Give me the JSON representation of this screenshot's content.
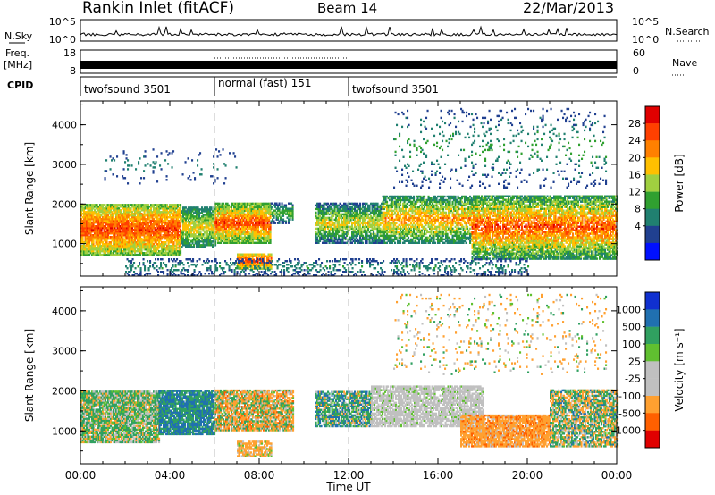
{
  "header": {
    "station": "Rankin Inlet (fitACF)",
    "beam": "Beam 14",
    "date": "22/Mar/2013"
  },
  "noise_panel": {
    "left_label": "N.Sky",
    "right_label": "N.Search",
    "left_ticks": [
      "10^5",
      "10^0"
    ],
    "right_ticks": [
      "10^5",
      "10^0"
    ]
  },
  "freq_panel": {
    "left_label_line1": "Freq.",
    "left_label_line2": "[MHz]",
    "right_label": "Nave",
    "left_ticks": [
      "18",
      "8"
    ],
    "right_ticks": [
      "60",
      "0"
    ]
  },
  "cpid_panel": {
    "label": "CPID",
    "segments": [
      {
        "name": "twofsound 3501",
        "start_ut": 0,
        "end_ut": 6
      },
      {
        "name": "normal (fast) 151",
        "start_ut": 6,
        "end_ut": 12
      },
      {
        "name": "twofsound 3501",
        "start_ut": 12,
        "end_ut": 24
      }
    ]
  },
  "time_axis": {
    "label": "Time UT",
    "tick_labels": [
      "00:00",
      "04:00",
      "08:00",
      "12:00",
      "16:00",
      "20:00",
      "00:00"
    ]
  },
  "chart_data": [
    {
      "type": "heatmap",
      "name": "power",
      "xlabel": "Time UT",
      "ylabel": "Slant Range [km]",
      "x_range_hours": [
        0,
        24
      ],
      "ylim": [
        180,
        4600
      ],
      "y_ticks": [
        "1000",
        "2000",
        "3000",
        "4000"
      ],
      "colorbar_label": "Power [dB]",
      "colorbar_ticks": [
        "28",
        "24",
        "20",
        "16",
        "12",
        "8",
        "4"
      ],
      "colorbar_colors": [
        "#e00000",
        "#ff4000",
        "#ff8000",
        "#ffc000",
        "#a0d040",
        "#30a030",
        "#208070",
        "#204090",
        "#0010ff"
      ],
      "regions": [
        {
          "t0": 0.0,
          "t1": 4.5,
          "r0": 700,
          "r1": 2000,
          "density": 0.9,
          "level": [
            14,
            30
          ]
        },
        {
          "t0": 4.5,
          "t1": 6.0,
          "r0": 900,
          "r1": 1900,
          "density": 0.8,
          "level": [
            8,
            22
          ]
        },
        {
          "t0": 6.0,
          "t1": 8.5,
          "r0": 1000,
          "r1": 2000,
          "density": 0.9,
          "level": [
            12,
            30
          ]
        },
        {
          "t0": 7.0,
          "t1": 8.5,
          "r0": 350,
          "r1": 750,
          "density": 0.85,
          "level": [
            16,
            30
          ]
        },
        {
          "t0": 8.5,
          "t1": 9.5,
          "r0": 1500,
          "r1": 2000,
          "density": 0.6,
          "level": [
            6,
            16
          ]
        },
        {
          "t0": 10.5,
          "t1": 13.5,
          "r0": 1000,
          "r1": 2000,
          "density": 0.75,
          "level": [
            6,
            22
          ]
        },
        {
          "t0": 13.5,
          "t1": 17.5,
          "r0": 1000,
          "r1": 2200,
          "density": 0.7,
          "level": [
            8,
            26
          ]
        },
        {
          "t0": 17.5,
          "t1": 24.0,
          "r0": 600,
          "r1": 2200,
          "density": 0.8,
          "level": [
            10,
            30
          ]
        },
        {
          "t0": 2.0,
          "t1": 20.0,
          "r0": 180,
          "r1": 600,
          "density": 0.25,
          "level": [
            4,
            12
          ]
        },
        {
          "t0": 1.0,
          "t1": 7.0,
          "r0": 2500,
          "r1": 3400,
          "density": 0.05,
          "level": [
            4,
            10
          ]
        },
        {
          "t0": 14.0,
          "t1": 23.5,
          "r0": 2400,
          "r1": 4400,
          "density": 0.07,
          "level": [
            4,
            14
          ]
        }
      ]
    },
    {
      "type": "heatmap",
      "name": "velocity",
      "xlabel": "Time UT",
      "ylabel": "Slant Range [km]",
      "x_range_hours": [
        0,
        24
      ],
      "ylim": [
        180,
        4600
      ],
      "y_ticks": [
        "1000",
        "2000",
        "3000",
        "4000"
      ],
      "colorbar_label": "Velocity [m s⁻¹]",
      "colorbar_ticks": [
        "1000",
        "500",
        "100",
        "25",
        "-25",
        "-100",
        "-500",
        "-1000"
      ],
      "colorbar_colors": [
        "#1030d0",
        "#2070b0",
        "#30a060",
        "#60c030",
        "#c0c0c0",
        "#c0c0c0",
        "#ffa030",
        "#ff6000",
        "#e00000"
      ],
      "regions": [
        {
          "t0": 0.0,
          "t1": 3.5,
          "r0": 700,
          "r1": 2000,
          "density": 0.9,
          "level": [
            -200,
            400
          ]
        },
        {
          "t0": 3.5,
          "t1": 6.0,
          "r0": 900,
          "r1": 2000,
          "density": 0.85,
          "level": [
            100,
            1000
          ]
        },
        {
          "t0": 6.0,
          "t1": 9.5,
          "r0": 1000,
          "r1": 2000,
          "density": 0.85,
          "level": [
            -600,
            300
          ]
        },
        {
          "t0": 7.0,
          "t1": 8.5,
          "r0": 350,
          "r1": 750,
          "density": 0.75,
          "level": [
            -500,
            100
          ]
        },
        {
          "t0": 10.5,
          "t1": 13.0,
          "r0": 1100,
          "r1": 2000,
          "density": 0.8,
          "level": [
            -200,
            800
          ]
        },
        {
          "t0": 13.0,
          "t1": 18.0,
          "r0": 1100,
          "r1": 2100,
          "density": 0.75,
          "level": [
            -30,
            30
          ]
        },
        {
          "t0": 17.0,
          "t1": 21.0,
          "r0": 600,
          "r1": 1400,
          "density": 0.85,
          "level": [
            -600,
            -50
          ]
        },
        {
          "t0": 21.0,
          "t1": 24.0,
          "r0": 600,
          "r1": 2000,
          "density": 0.75,
          "level": [
            -500,
            600
          ]
        },
        {
          "t0": 14.0,
          "t1": 23.5,
          "r0": 2400,
          "r1": 4400,
          "density": 0.06,
          "level": [
            -400,
            200
          ]
        }
      ]
    }
  ]
}
